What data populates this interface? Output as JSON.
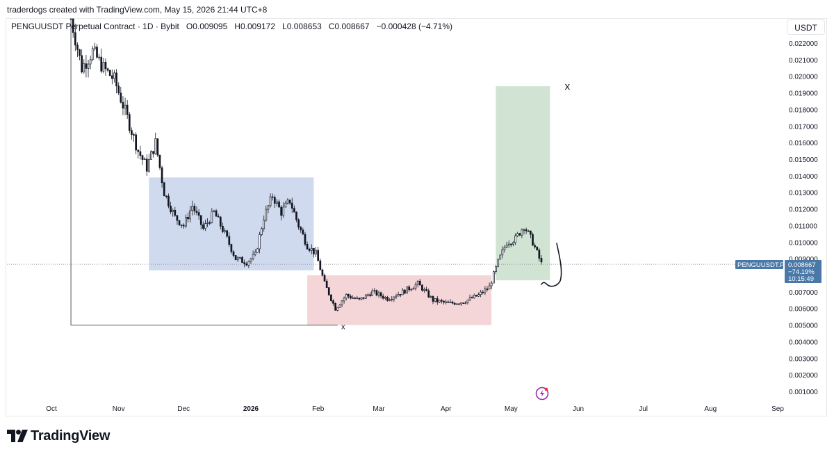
{
  "header": {
    "attribution": "traderdogs created with TradingView.com, May 15, 2026 21:44 UTC+8"
  },
  "legend": {
    "symbol": "PENGUUSDT Perpetual Contract · 1D · Bybit",
    "open_label": "O",
    "open": "0.009095",
    "high_label": "H",
    "high": "0.009172",
    "low_label": "L",
    "low": "0.008653",
    "close_label": "C",
    "close": "0.008667",
    "change": "−0.000428 (−4.71%)"
  },
  "unit_button": "USDT",
  "price_tag": {
    "symbol": "PENGUUSDT.P",
    "price": "0.008667",
    "change": "−74.19%",
    "countdown": "10:15:49"
  },
  "footer": {
    "brand": "TradingView"
  },
  "colors": {
    "blue_zone": "#c7d3ec",
    "red_zone": "#f2cfd2",
    "green_zone": "#c9dfcc",
    "candle": "#131722",
    "price_tag": "#4a78a8"
  },
  "chart_data": {
    "type": "candlestick",
    "symbol": "PENGUUSDT.P",
    "interval": "1D",
    "ylim": [
      0.0005,
      0.0226
    ],
    "y_ticks": [
      "0.022000",
      "0.021000",
      "0.020000",
      "0.019000",
      "0.018000",
      "0.017000",
      "0.016000",
      "0.015000",
      "0.014000",
      "0.013000",
      "0.012000",
      "0.011000",
      "0.010000",
      "0.009000",
      "0.008000",
      "0.007000",
      "0.006000",
      "0.005000",
      "0.004000",
      "0.003000",
      "0.002000",
      "0.001000"
    ],
    "y_tick_values": [
      0.022,
      0.021,
      0.02,
      0.019,
      0.018,
      0.017,
      0.016,
      0.015,
      0.014,
      0.013,
      0.012,
      0.011,
      0.01,
      0.009,
      0.008,
      0.007,
      0.006,
      0.005,
      0.004,
      0.003,
      0.002,
      0.001
    ],
    "x_ticks": [
      {
        "label": "Oct",
        "date": "2025-10-01"
      },
      {
        "label": "Nov",
        "date": "2025-11-01"
      },
      {
        "label": "Dec",
        "date": "2025-12-01"
      },
      {
        "label": "2026",
        "date": "2026-01-01"
      },
      {
        "label": "Feb",
        "date": "2026-02-01"
      },
      {
        "label": "Mar",
        "date": "2026-03-01"
      },
      {
        "label": "Apr",
        "date": "2026-04-01"
      },
      {
        "label": "May",
        "date": "2026-05-01"
      },
      {
        "label": "Jun",
        "date": "2026-06-01"
      },
      {
        "label": "Jul",
        "date": "2026-07-01"
      },
      {
        "label": "Aug",
        "date": "2026-08-01"
      },
      {
        "label": "Sep",
        "date": "2026-09-01"
      }
    ],
    "price_path": [
      [
        "2025-10-10",
        0.0235
      ],
      [
        "2025-10-15",
        0.0205
      ],
      [
        "2025-10-20",
        0.0215
      ],
      [
        "2025-10-25",
        0.0205
      ],
      [
        "2025-10-30",
        0.0198
      ],
      [
        "2025-11-05",
        0.0175
      ],
      [
        "2025-11-10",
        0.0155
      ],
      [
        "2025-11-14",
        0.0145
      ],
      [
        "2025-11-18",
        0.016
      ],
      [
        "2025-11-22",
        0.013
      ],
      [
        "2025-11-27",
        0.0115
      ],
      [
        "2025-12-01",
        0.011
      ],
      [
        "2025-12-05",
        0.0122
      ],
      [
        "2025-12-10",
        0.0108
      ],
      [
        "2025-12-15",
        0.0118
      ],
      [
        "2025-12-20",
        0.0105
      ],
      [
        "2025-12-25",
        0.009
      ],
      [
        "2025-12-30",
        0.0088
      ],
      [
        "2026-01-03",
        0.0092
      ],
      [
        "2026-01-07",
        0.0115
      ],
      [
        "2026-01-11",
        0.0128
      ],
      [
        "2026-01-15",
        0.0118
      ],
      [
        "2026-01-19",
        0.0125
      ],
      [
        "2026-01-23",
        0.011
      ],
      [
        "2026-01-27",
        0.0098
      ],
      [
        "2026-01-31",
        0.0093
      ],
      [
        "2026-02-04",
        0.0075
      ],
      [
        "2026-02-09",
        0.006
      ],
      [
        "2026-02-14",
        0.0068
      ],
      [
        "2026-02-20",
        0.0065
      ],
      [
        "2026-02-26",
        0.007
      ],
      [
        "2026-03-05",
        0.0066
      ],
      [
        "2026-03-12",
        0.007
      ],
      [
        "2026-03-19",
        0.0075
      ],
      [
        "2026-03-26",
        0.0065
      ],
      [
        "2026-04-02",
        0.0063
      ],
      [
        "2026-04-09",
        0.0064
      ],
      [
        "2026-04-16",
        0.0068
      ],
      [
        "2026-04-21",
        0.0073
      ],
      [
        "2026-04-25",
        0.0088
      ],
      [
        "2026-04-29",
        0.01
      ],
      [
        "2026-05-03",
        0.0102
      ],
      [
        "2026-05-07",
        0.011
      ],
      [
        "2026-05-11",
        0.01
      ],
      [
        "2026-05-15",
        0.0087
      ]
    ],
    "zones": [
      {
        "color": "blue",
        "from": "2025-11-15",
        "to": "2026-01-30",
        "ymin": 0.0083,
        "ymax": 0.0139
      },
      {
        "color": "red",
        "from": "2026-01-27",
        "to": "2026-04-22",
        "ymin": 0.005,
        "ymax": 0.008
      },
      {
        "color": "green",
        "from": "2026-04-24",
        "to": "2026-05-19",
        "ymin": 0.0077,
        "ymax": 0.0194
      }
    ],
    "annotations": [
      {
        "text": "x",
        "date": "2026-02-10",
        "y": 0.005
      },
      {
        "text": "x",
        "date": "2026-05-27",
        "y": 0.0194
      }
    ],
    "current_price": 0.008667
  }
}
